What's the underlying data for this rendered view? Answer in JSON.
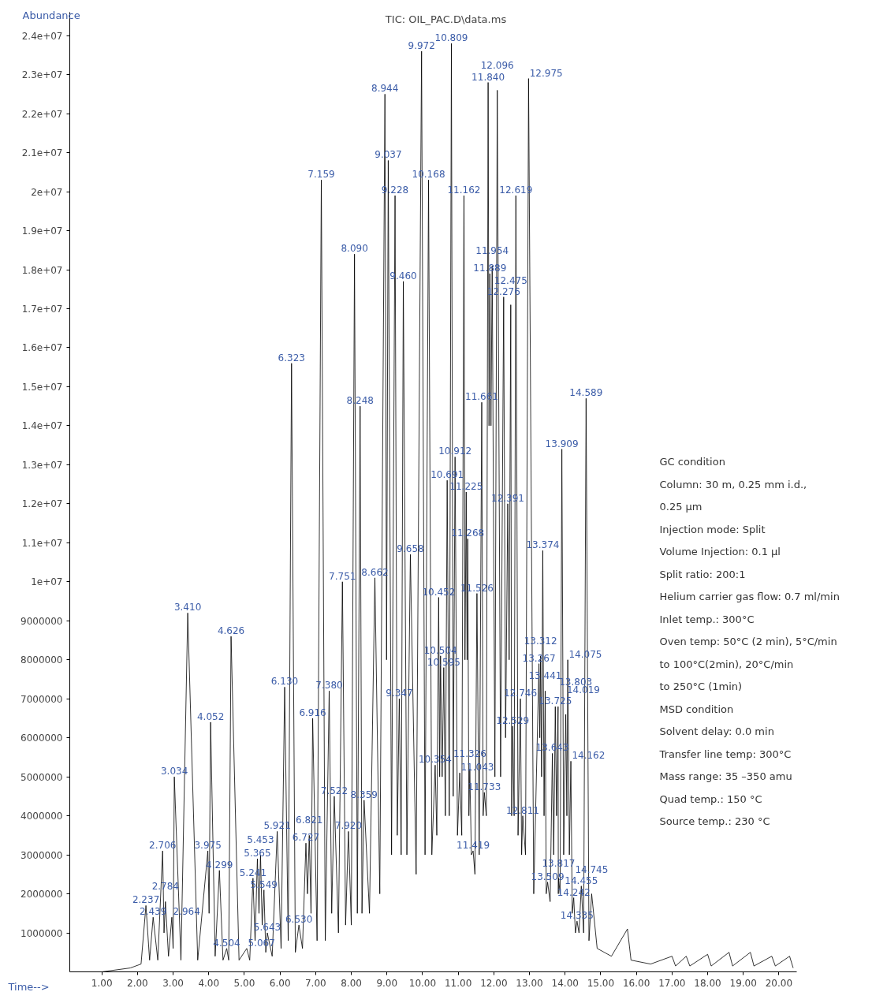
{
  "chart_data": {
    "type": "line",
    "title": "TIC: OIL_PAC.D\\data.ms",
    "xlabel": "Time-->",
    "ylabel": "Abundance",
    "xlim": [
      0.1,
      20.5
    ],
    "ylim": [
      0,
      24600000
    ],
    "xticks": [
      {
        "value": 1,
        "label": "1.00"
      },
      {
        "value": 2,
        "label": "2.00"
      },
      {
        "value": 3,
        "label": "3.00"
      },
      {
        "value": 4,
        "label": "4.00"
      },
      {
        "value": 5,
        "label": "5.00"
      },
      {
        "value": 6,
        "label": "6.00"
      },
      {
        "value": 7,
        "label": "7.00"
      },
      {
        "value": 8,
        "label": "8.00"
      },
      {
        "value": 9,
        "label": "9.00"
      },
      {
        "value": 10,
        "label": "10.00"
      },
      {
        "value": 11,
        "label": "11.00"
      },
      {
        "value": 12,
        "label": "12.00"
      },
      {
        "value": 13,
        "label": "13.00"
      },
      {
        "value": 14,
        "label": "14.00"
      },
      {
        "value": 15,
        "label": "15.00"
      },
      {
        "value": 16,
        "label": "16.00"
      },
      {
        "value": 17,
        "label": "17.00"
      },
      {
        "value": 18,
        "label": "18.00"
      },
      {
        "value": 19,
        "label": "19.00"
      },
      {
        "value": 20,
        "label": "20.00"
      }
    ],
    "yticks": [
      1000000,
      2000000,
      3000000,
      4000000,
      5000000,
      6000000,
      7000000,
      8000000,
      9000000,
      {
        "value": 10000000,
        "label": "1e+07"
      },
      {
        "value": 11000000,
        "label": "1.1e+07"
      },
      {
        "value": 12000000,
        "label": "1.2e+07"
      },
      {
        "value": 13000000,
        "label": "1.3e+07"
      },
      {
        "value": 14000000,
        "label": "1.4e+07"
      },
      {
        "value": 15000000,
        "label": "1.5e+07"
      },
      {
        "value": 16000000,
        "label": "1.6e+07"
      },
      {
        "value": 17000000,
        "label": "1.7e+07"
      },
      {
        "value": 18000000,
        "label": "1.8e+07"
      },
      {
        "value": 19000000,
        "label": "1.9e+07"
      },
      {
        "value": 20000000,
        "label": "2e+07"
      },
      {
        "value": 21000000,
        "label": "2.1e+07"
      },
      {
        "value": 22000000,
        "label": "2.2e+07"
      },
      {
        "value": 23000000,
        "label": "2.3e+07"
      },
      {
        "value": 24000000,
        "label": "2.4e+07"
      }
    ],
    "grid": false,
    "series": [
      {
        "color": "#000000",
        "x": [
          1.0,
          1.8,
          2.1,
          2.237,
          2.34,
          2.439,
          2.57,
          2.706,
          2.745,
          2.784,
          2.87,
          2.964,
          3.0,
          3.034,
          3.22,
          3.41,
          3.69,
          3.975,
          4.01,
          4.052,
          4.18,
          4.299,
          4.4,
          4.504,
          4.56,
          4.626,
          4.85,
          5.067,
          5.15,
          5.241,
          5.3,
          5.365,
          5.41,
          5.453,
          5.5,
          5.549,
          5.6,
          5.643,
          5.78,
          5.921,
          6.03,
          6.13,
          6.23,
          6.323,
          6.43,
          6.53,
          6.63,
          6.727,
          6.77,
          6.821,
          6.87,
          6.916,
          7.04,
          7.159,
          7.27,
          7.38,
          7.45,
          7.522,
          7.64,
          7.751,
          7.84,
          7.92,
          8.0,
          8.09,
          8.17,
          8.248,
          8.3,
          8.359,
          8.51,
          8.662,
          8.8,
          8.944,
          8.99,
          9.037,
          9.13,
          9.228,
          9.29,
          9.347,
          9.4,
          9.46,
          9.56,
          9.658,
          9.82,
          9.972,
          10.07,
          10.168,
          10.26,
          10.354,
          10.4,
          10.452,
          10.48,
          10.504,
          10.55,
          10.595,
          10.64,
          10.691,
          10.75,
          10.809,
          10.86,
          10.912,
          10.98,
          11.043,
          11.1,
          11.162,
          11.19,
          11.225,
          11.25,
          11.268,
          11.3,
          11.326,
          11.37,
          11.419,
          11.47,
          11.526,
          11.59,
          11.661,
          11.7,
          11.733,
          11.79,
          11.84,
          11.865,
          11.889,
          11.92,
          11.954,
          12.03,
          12.096,
          12.19,
          12.276,
          12.33,
          12.391,
          12.43,
          12.475,
          12.5,
          12.529,
          12.57,
          12.619,
          12.68,
          12.746,
          12.78,
          12.811,
          12.89,
          12.975,
          13.12,
          13.267,
          13.29,
          13.312,
          13.34,
          13.374,
          13.41,
          13.441,
          13.47,
          13.509,
          13.58,
          13.643,
          13.68,
          13.725,
          13.76,
          13.803,
          13.81,
          13.817,
          13.86,
          13.909,
          13.96,
          14.019,
          14.05,
          14.075,
          14.12,
          14.162,
          14.2,
          14.242,
          14.29,
          14.335,
          14.39,
          14.455,
          14.52,
          14.589,
          14.67,
          14.745,
          14.9,
          15.3,
          15.75,
          15.85,
          16.4,
          17.0,
          17.1,
          17.4,
          17.5,
          18.0,
          18.1,
          18.6,
          18.7,
          19.2,
          19.3,
          19.8,
          19.9,
          20.3,
          20.4
        ],
        "values": [
          0,
          100000,
          200000,
          1700000,
          300000,
          1400000,
          300000,
          3100000,
          1000000,
          1800000,
          400000,
          1400000,
          600000,
          5000000,
          300000,
          9200000,
          300000,
          3100000,
          1500000,
          6400000,
          400000,
          2600000,
          300000,
          600000,
          300000,
          8600000,
          300000,
          600000,
          300000,
          2400000,
          800000,
          2900000,
          1500000,
          3000000,
          1200000,
          2100000,
          500000,
          1000000,
          400000,
          3600000,
          600000,
          7300000,
          800000,
          15600000,
          500000,
          1200000,
          600000,
          3300000,
          2000000,
          3500000,
          1500000,
          6500000,
          800000,
          20300000,
          800000,
          7200000,
          1500000,
          4500000,
          1000000,
          10000000,
          1200000,
          3600000,
          1200000,
          18400000,
          1500000,
          14500000,
          1500000,
          4400000,
          1500000,
          10100000,
          2000000,
          22500000,
          8000000,
          20800000,
          3000000,
          19900000,
          3500000,
          7000000,
          3000000,
          17700000,
          3000000,
          10700000,
          2500000,
          23600000,
          3000000,
          20300000,
          3000000,
          5300000,
          3500000,
          9600000,
          5000000,
          8100000,
          5000000,
          7800000,
          4000000,
          12600000,
          4000000,
          23800000,
          4500000,
          13200000,
          3500000,
          5100000,
          3500000,
          19900000,
          8000000,
          12300000,
          8000000,
          11100000,
          4000000,
          5200000,
          3000000,
          3100000,
          2500000,
          9700000,
          3000000,
          14600000,
          4000000,
          4600000,
          4000000,
          22800000,
          14000000,
          17900000,
          14000000,
          18100000,
          5000000,
          22600000,
          5000000,
          17300000,
          6000000,
          12000000,
          8000000,
          17100000,
          4000000,
          6300000,
          4000000,
          19900000,
          3500000,
          7000000,
          3000000,
          4000000,
          3000000,
          22900000,
          2000000,
          7900000,
          6000000,
          8100000,
          5000000,
          10800000,
          4000000,
          7200000,
          2000000,
          2300000,
          1800000,
          5600000,
          3000000,
          6800000,
          4000000,
          6800000,
          2000000,
          2400000,
          2000000,
          13400000,
          3000000,
          6600000,
          4000000,
          8000000,
          3000000,
          5400000,
          1500000,
          1900000,
          1000000,
          1300000,
          1000000,
          2200000,
          1000000,
          14700000,
          800000,
          2000000,
          600000,
          400000,
          1100000,
          300000,
          200000,
          400000,
          150000,
          400000,
          150000,
          450000,
          150000,
          500000,
          150000,
          500000,
          150000,
          400000,
          150000,
          400000,
          100000
        ]
      }
    ],
    "annotations": [
      {
        "text": "2.237",
        "x": 2.237,
        "y": 1700000
      },
      {
        "text": "2.439",
        "x": 2.439,
        "y": 1400000
      },
      {
        "text": "2.706",
        "x": 2.706,
        "y": 3100000
      },
      {
        "text": "2.784",
        "x": 2.784,
        "y": 1800000
      },
      {
        "text": "2.964",
        "x": 2.964,
        "y": 1400000
      },
      {
        "text": "3.034",
        "x": 3.034,
        "y": 5000000
      },
      {
        "text": "3.410",
        "x": 3.41,
        "y": 9200000
      },
      {
        "text": "3.975",
        "x": 3.975,
        "y": 3100000
      },
      {
        "text": "4.052",
        "x": 4.052,
        "y": 6400000
      },
      {
        "text": "4.299",
        "x": 4.299,
        "y": 2600000
      },
      {
        "text": "4.504",
        "x": 4.504,
        "y": 600000
      },
      {
        "text": "4.626",
        "x": 4.626,
        "y": 8600000
      },
      {
        "text": "5.067",
        "x": 5.067,
        "y": 600000
      },
      {
        "text": "5.241",
        "x": 5.241,
        "y": 2400000
      },
      {
        "text": "5.365",
        "x": 5.365,
        "y": 2900000
      },
      {
        "text": "5.453",
        "x": 5.453,
        "y": 3000000
      },
      {
        "text": "5.549",
        "x": 5.549,
        "y": 2100000
      },
      {
        "text": "5.643",
        "x": 5.643,
        "y": 1000000
      },
      {
        "text": "5.921",
        "x": 5.921,
        "y": 3600000
      },
      {
        "text": "6.130",
        "x": 6.13,
        "y": 7300000
      },
      {
        "text": "6.323",
        "x": 6.323,
        "y": 15600000
      },
      {
        "text": "6.530",
        "x": 6.53,
        "y": 1200000
      },
      {
        "text": "6.727",
        "x": 6.727,
        "y": 3300000
      },
      {
        "text": "6.821",
        "x": 6.821,
        "y": 3500000
      },
      {
        "text": "6.916",
        "x": 6.916,
        "y": 6500000
      },
      {
        "text": "7.159",
        "x": 7.159,
        "y": 20300000
      },
      {
        "text": "7.380",
        "x": 7.38,
        "y": 7200000
      },
      {
        "text": "7.522",
        "x": 7.522,
        "y": 4500000
      },
      {
        "text": "7.751",
        "x": 7.751,
        "y": 10000000
      },
      {
        "text": "7.920",
        "x": 7.92,
        "y": 3600000
      },
      {
        "text": "8.090",
        "x": 8.09,
        "y": 18400000
      },
      {
        "text": "8.248",
        "x": 8.248,
        "y": 14500000
      },
      {
        "text": "8.359",
        "x": 8.359,
        "y": 4400000
      },
      {
        "text": "8.662",
        "x": 8.662,
        "y": 10100000
      },
      {
        "text": "8.944",
        "x": 8.944,
        "y": 22500000
      },
      {
        "text": "9.037",
        "x": 9.037,
        "y": 20800000
      },
      {
        "text": "9.228",
        "x": 9.228,
        "y": 19900000
      },
      {
        "text": "9.347",
        "x": 9.347,
        "y": 7000000
      },
      {
        "text": "9.460",
        "x": 9.46,
        "y": 17700000
      },
      {
        "text": "9.658",
        "x": 9.658,
        "y": 10700000
      },
      {
        "text": "9.972",
        "x": 9.972,
        "y": 23600000
      },
      {
        "text": "10.168",
        "x": 10.168,
        "y": 20300000
      },
      {
        "text": "10.354",
        "x": 10.354,
        "y": 5300000
      },
      {
        "text": "10.452",
        "x": 10.452,
        "y": 9600000
      },
      {
        "text": "10.504",
        "x": 10.504,
        "y": 8100000
      },
      {
        "text": "10.595",
        "x": 10.595,
        "y": 7800000
      },
      {
        "text": "10.691",
        "x": 10.691,
        "y": 12600000
      },
      {
        "text": "10.809",
        "x": 10.809,
        "y": 23800000
      },
      {
        "text": "10.912",
        "x": 10.912,
        "y": 13200000
      },
      {
        "text": "11.043",
        "x": 11.043,
        "y": 5100000
      },
      {
        "text": "11.162",
        "x": 11.162,
        "y": 19900000
      },
      {
        "text": "11.225",
        "x": 11.225,
        "y": 12300000
      },
      {
        "text": "11.268",
        "x": 11.268,
        "y": 11100000
      },
      {
        "text": "11.326",
        "x": 11.326,
        "y": 5200000
      },
      {
        "text": "11.419",
        "x": 11.419,
        "y": 3100000
      },
      {
        "text": "11.526",
        "x": 11.526,
        "y": 9700000
      },
      {
        "text": "11.661",
        "x": 11.661,
        "y": 14600000
      },
      {
        "text": "11.733",
        "x": 11.733,
        "y": 4600000
      },
      {
        "text": "11.840",
        "x": 11.84,
        "y": 22800000
      },
      {
        "text": "11.889",
        "x": 11.889,
        "y": 17900000
      },
      {
        "text": "11.954",
        "x": 11.954,
        "y": 18100000
      },
      {
        "text": "12.096",
        "x": 12.096,
        "y": 22600000
      },
      {
        "text": "12.276",
        "x": 12.276,
        "y": 17300000
      },
      {
        "text": "12.391",
        "x": 12.391,
        "y": 12000000
      },
      {
        "text": "12.475",
        "x": 12.475,
        "y": 17100000
      },
      {
        "text": "12.529",
        "x": 12.529,
        "y": 6300000
      },
      {
        "text": "12.619",
        "x": 12.619,
        "y": 19900000
      },
      {
        "text": "12.746",
        "x": 12.746,
        "y": 7000000
      },
      {
        "text": "12.811",
        "x": 12.811,
        "y": 4000000
      },
      {
        "text": "12.975",
        "x": 12.975,
        "y": 22900000
      },
      {
        "text": "13.267",
        "x": 13.267,
        "y": 7900000
      },
      {
        "text": "13.312",
        "x": 13.312,
        "y": 8100000
      },
      {
        "text": "13.374",
        "x": 13.374,
        "y": 10800000
      },
      {
        "text": "13.441",
        "x": 13.441,
        "y": 7200000
      },
      {
        "text": "13.509",
        "x": 13.509,
        "y": 2300000
      },
      {
        "text": "13.643",
        "x": 13.643,
        "y": 5600000
      },
      {
        "text": "13.725",
        "x": 13.725,
        "y": 6800000
      },
      {
        "text": "13.803",
        "x": 13.803,
        "y": 6800000
      },
      {
        "text": "13.817",
        "x": 13.817,
        "y": 2400000
      },
      {
        "text": "13.909",
        "x": 13.909,
        "y": 13400000
      },
      {
        "text": "14.019",
        "x": 14.019,
        "y": 6600000
      },
      {
        "text": "14.075",
        "x": 14.075,
        "y": 8000000
      },
      {
        "text": "14.162",
        "x": 14.162,
        "y": 5400000
      },
      {
        "text": "14.242",
        "x": 14.242,
        "y": 1900000
      },
      {
        "text": "14.335",
        "x": 14.335,
        "y": 1300000
      },
      {
        "text": "14.455",
        "x": 14.455,
        "y": 2200000
      },
      {
        "text": "14.589",
        "x": 14.589,
        "y": 14700000
      },
      {
        "text": "14.745",
        "x": 14.745,
        "y": 2000000
      },
      "GC condition",
      "Column: 30 m, 0.25 mm i.d.,",
      "0.25 µm",
      "Injection mode: Split",
      "Volume Injection: 0.1 µl",
      "Split ratio: 200:1",
      "Helium carrier gas flow: 0.7 ml/min",
      "Inlet temp.: 300°C",
      "Oven temp: 50°C (2 min), 5°C/min",
      "to 100°C(2min), 20°C/min",
      "to 250°C (1min)",
      "MSD condition",
      "Solvent delay: 0.0 min",
      "Transfer line temp: 300°C",
      "Mass range: 35 –350 amu",
      "Quad temp.: 150 °C",
      "Source temp.: 230 °C"
    ]
  }
}
